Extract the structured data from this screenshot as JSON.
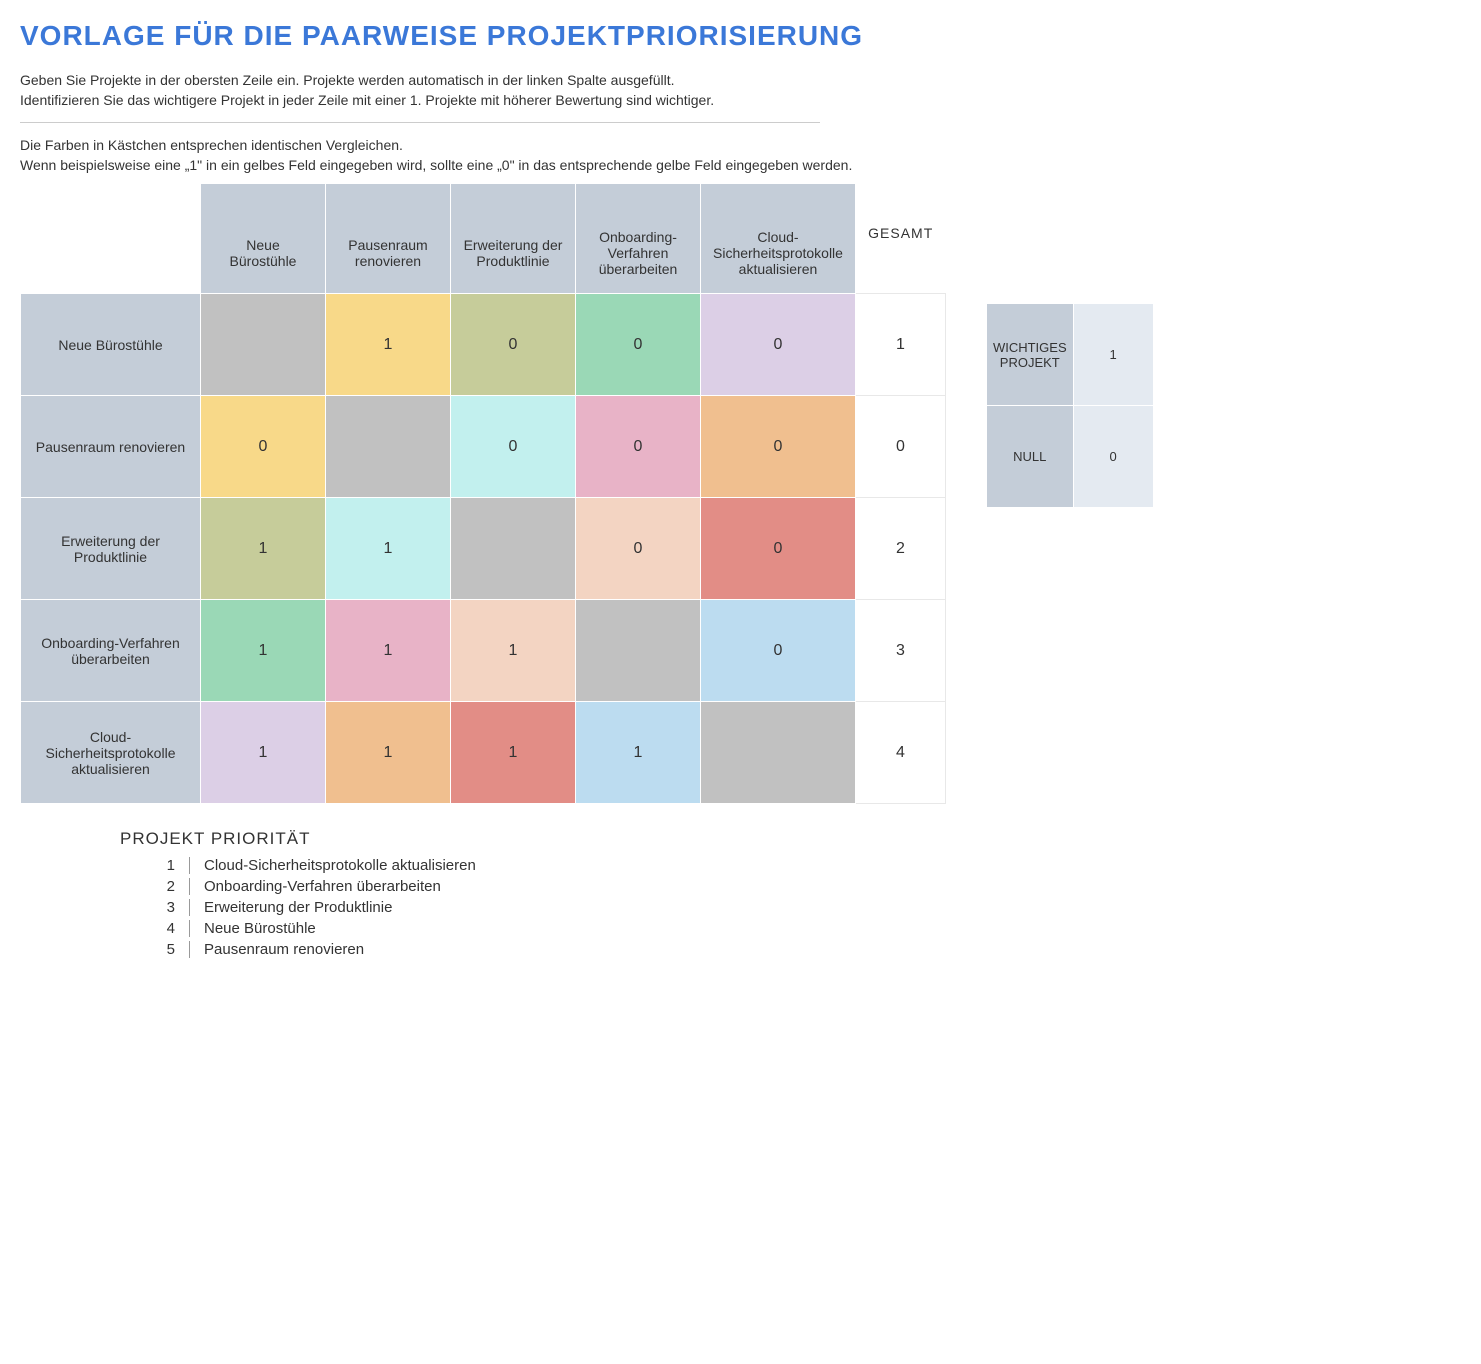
{
  "title": {
    "text": "VORLAGE FÜR DIE PAARWEISE PROJEKTPRIORISIERUNG",
    "color": "#3b78d8"
  },
  "intro": {
    "line1": "Geben Sie Projekte in der obersten Zeile ein. Projekte werden automatisch in der linken Spalte ausgefüllt.",
    "line2": "Identifizieren Sie das wichtigere Projekt in jeder Zeile mit einer 1. Projekte mit höherer Bewertung sind wichtiger.",
    "line3": "Die Farben in Kästchen entsprechen identischen Vergleichen.",
    "line4": "Wenn beispielsweise eine „1\" in ein gelbes Feld eingegeben wird, sollte eine „0\" in das entsprechende gelbe Feld eingegeben werden."
  },
  "colors": {
    "header_bg": "#c4cdd8",
    "diag_bg": "#c1c1c1",
    "yellow": "#f8d989",
    "olive": "#c6cc9a",
    "green": "#9ad8b6",
    "lavender": "#dccfe6",
    "cyan": "#c2f0ee",
    "pink": "#e8b3c7",
    "orange": "#f0bf8f",
    "peach": "#f3d4c2",
    "red": "#e28d86",
    "blue": "#bcdcf0",
    "legend_label_bg": "#c4cdd8",
    "legend_val_bg": "#e4eaf1"
  },
  "matrix": {
    "total_label": "GESAMT",
    "projects": [
      "Neue Bürostühle",
      "Pausenraum renovieren",
      "Erweiterung der Produktlinie",
      "Onboarding-Verfahren überarbeiten",
      "Cloud-Sicherheitsprotokolle aktualisieren"
    ],
    "cells": [
      [
        {
          "v": "",
          "c": "diag_bg"
        },
        {
          "v": "1",
          "c": "yellow"
        },
        {
          "v": "0",
          "c": "olive"
        },
        {
          "v": "0",
          "c": "green"
        },
        {
          "v": "0",
          "c": "lavender"
        }
      ],
      [
        {
          "v": "0",
          "c": "yellow"
        },
        {
          "v": "",
          "c": "diag_bg"
        },
        {
          "v": "0",
          "c": "cyan"
        },
        {
          "v": "0",
          "c": "pink"
        },
        {
          "v": "0",
          "c": "orange"
        }
      ],
      [
        {
          "v": "1",
          "c": "olive"
        },
        {
          "v": "1",
          "c": "cyan"
        },
        {
          "v": "",
          "c": "diag_bg"
        },
        {
          "v": "0",
          "c": "peach"
        },
        {
          "v": "0",
          "c": "red"
        }
      ],
      [
        {
          "v": "1",
          "c": "green"
        },
        {
          "v": "1",
          "c": "pink"
        },
        {
          "v": "1",
          "c": "peach"
        },
        {
          "v": "",
          "c": "diag_bg"
        },
        {
          "v": "0",
          "c": "blue"
        }
      ],
      [
        {
          "v": "1",
          "c": "lavender"
        },
        {
          "v": "1",
          "c": "orange"
        },
        {
          "v": "1",
          "c": "red"
        },
        {
          "v": "1",
          "c": "blue"
        },
        {
          "v": "",
          "c": "diag_bg"
        }
      ]
    ],
    "totals": [
      "1",
      "0",
      "2",
      "3",
      "4"
    ]
  },
  "legend": {
    "important_label": "WICHTIGES PROJEKT",
    "important_value": "1",
    "null_label": "NULL",
    "null_value": "0"
  },
  "priority": {
    "title": "PROJEKT PRIORITÄT",
    "items": [
      {
        "rank": "1",
        "name": "Cloud-Sicherheitsprotokolle aktualisieren"
      },
      {
        "rank": "2",
        "name": "Onboarding-Verfahren überarbeiten"
      },
      {
        "rank": "3",
        "name": "Erweiterung der Produktlinie"
      },
      {
        "rank": "4",
        "name": "Neue Bürostühle"
      },
      {
        "rank": "5",
        "name": "Pausenraum renovieren"
      }
    ]
  }
}
